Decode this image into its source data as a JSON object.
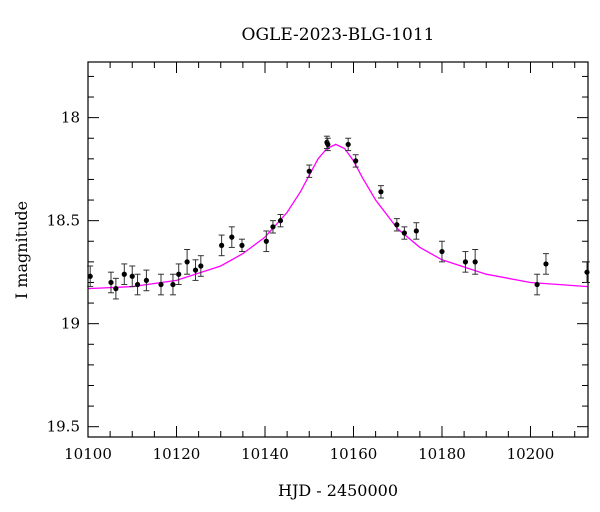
{
  "chart_data": {
    "type": "scatter",
    "title": "OGLE-2023-BLG-1011",
    "xlabel": "HJD - 2450000",
    "ylabel": "I magnitude",
    "xlim": [
      10100,
      10213
    ],
    "ylim": [
      19.55,
      17.73
    ],
    "y_inverted": true,
    "grid": false,
    "x_ticks": [
      10100,
      10120,
      10140,
      10160,
      10180,
      10200
    ],
    "y_ticks": [
      18,
      18.5,
      19,
      19.5
    ],
    "y_tick_labels": [
      "18",
      "18.5",
      "19",
      "19.5"
    ],
    "colors": {
      "points": "#000000",
      "model": "#ff00ff"
    },
    "series": [
      {
        "type": "scatter",
        "x": [
          10100.5,
          10105.2,
          10106.3,
          10108.2,
          10110.0,
          10111.2,
          10113.2,
          10116.5,
          10119.2,
          10120.5,
          10122.4,
          10124.3,
          10125.5,
          10130.2,
          10132.5,
          10134.8,
          10140.3,
          10141.8,
          10143.5,
          10150.0,
          10154.0,
          10154.2,
          10158.8,
          10160.5,
          10166.2,
          10169.8,
          10171.5,
          10174.2,
          10180.0,
          10185.3,
          10187.5,
          10201.5,
          10203.5,
          10213.0
        ],
        "y": [
          18.77,
          18.8,
          18.83,
          18.76,
          18.77,
          18.81,
          18.79,
          18.81,
          18.81,
          18.76,
          18.7,
          18.74,
          18.72,
          18.62,
          18.58,
          18.62,
          18.6,
          18.53,
          18.5,
          18.26,
          18.12,
          18.13,
          18.13,
          18.21,
          18.36,
          18.52,
          18.56,
          18.55,
          18.65,
          18.7,
          18.7,
          18.81,
          18.71,
          18.75
        ],
        "yerr": [
          0.05,
          0.05,
          0.05,
          0.05,
          0.05,
          0.05,
          0.05,
          0.05,
          0.05,
          0.05,
          0.06,
          0.05,
          0.05,
          0.05,
          0.05,
          0.03,
          0.05,
          0.03,
          0.03,
          0.03,
          0.03,
          0.03,
          0.03,
          0.03,
          0.03,
          0.03,
          0.03,
          0.04,
          0.05,
          0.05,
          0.06,
          0.05,
          0.05,
          0.05
        ]
      },
      {
        "type": "line",
        "x": [
          10100,
          10110,
          10120,
          10130,
          10135,
          10140,
          10145,
          10148,
          10150,
          10152,
          10154,
          10156,
          10158,
          10160,
          10162,
          10165,
          10170,
          10175,
          10180,
          10190,
          10200,
          10213
        ],
        "y": [
          18.83,
          18.82,
          18.79,
          18.72,
          18.66,
          18.58,
          18.46,
          18.36,
          18.28,
          18.2,
          18.15,
          18.13,
          18.15,
          18.21,
          18.29,
          18.4,
          18.54,
          18.63,
          18.69,
          18.76,
          18.8,
          18.82
        ]
      }
    ]
  }
}
